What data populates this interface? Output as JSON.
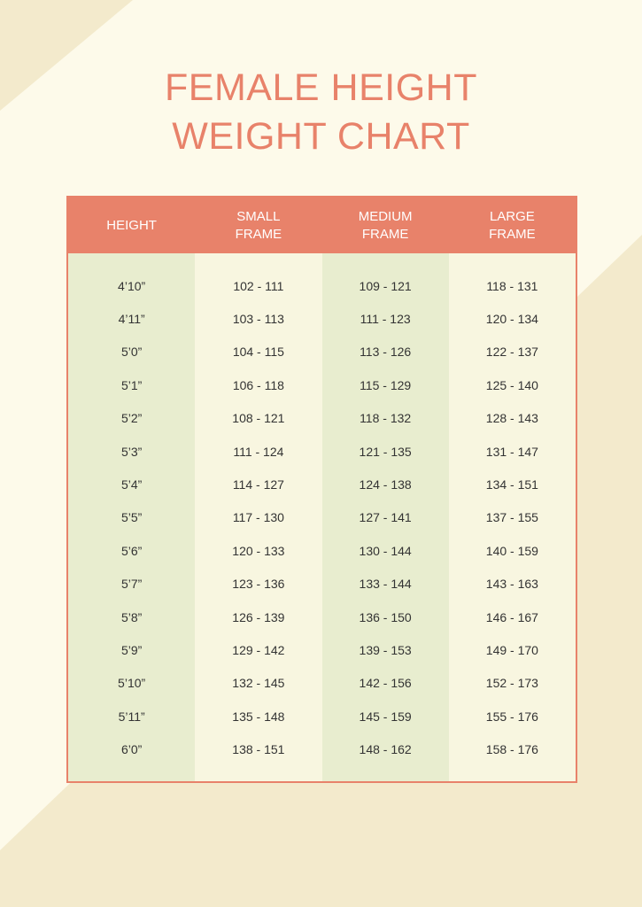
{
  "title": {
    "line1": "FEMALE HEIGHT",
    "line2": "WEIGHT CHART"
  },
  "colors": {
    "accent": "#e8826a",
    "page_background": "#fdfaea",
    "corner_shape": "#f3eacc",
    "shaded_column": "#e8edcf",
    "plain_column": "#f8f6e0"
  },
  "table": {
    "headers": [
      "HEIGHT",
      "SMALL\nFRAME",
      "MEDIUM\nFRAME",
      "LARGE\nFRAME"
    ],
    "rows": [
      [
        "4’10”",
        "102 - 111",
        "109 - 121",
        "118 - 131"
      ],
      [
        "4’11”",
        "103 - 113",
        "111 - 123",
        "120 - 134"
      ],
      [
        "5’0”",
        "104 - 115",
        "113 - 126",
        "122 - 137"
      ],
      [
        "5’1”",
        "106 - 118",
        "115 - 129",
        "125 - 140"
      ],
      [
        "5’2”",
        "108 - 121",
        "118 - 132",
        "128 - 143"
      ],
      [
        "5’3”",
        "111 - 124",
        "121 - 135",
        "131 - 147"
      ],
      [
        "5’4”",
        "114 - 127",
        "124 - 138",
        "134 - 151"
      ],
      [
        "5’5”",
        "117 - 130",
        "127 - 141",
        "137 - 155"
      ],
      [
        "5’6”",
        "120 - 133",
        "130 - 144",
        "140 - 159"
      ],
      [
        "5’7”",
        "123 - 136",
        "133 - 144",
        "143 - 163"
      ],
      [
        "5’8”",
        "126 - 139",
        "136 - 150",
        "146 - 167"
      ],
      [
        "5’9”",
        "129 - 142",
        "139 - 153",
        "149 - 170"
      ],
      [
        "5’10”",
        "132 - 145",
        "142 - 156",
        "152 - 173"
      ],
      [
        "5’11”",
        "135 - 148",
        "145 - 159",
        "155 - 176"
      ],
      [
        "6’0”",
        "138 - 151",
        "148 - 162",
        "158 - 176"
      ]
    ]
  }
}
